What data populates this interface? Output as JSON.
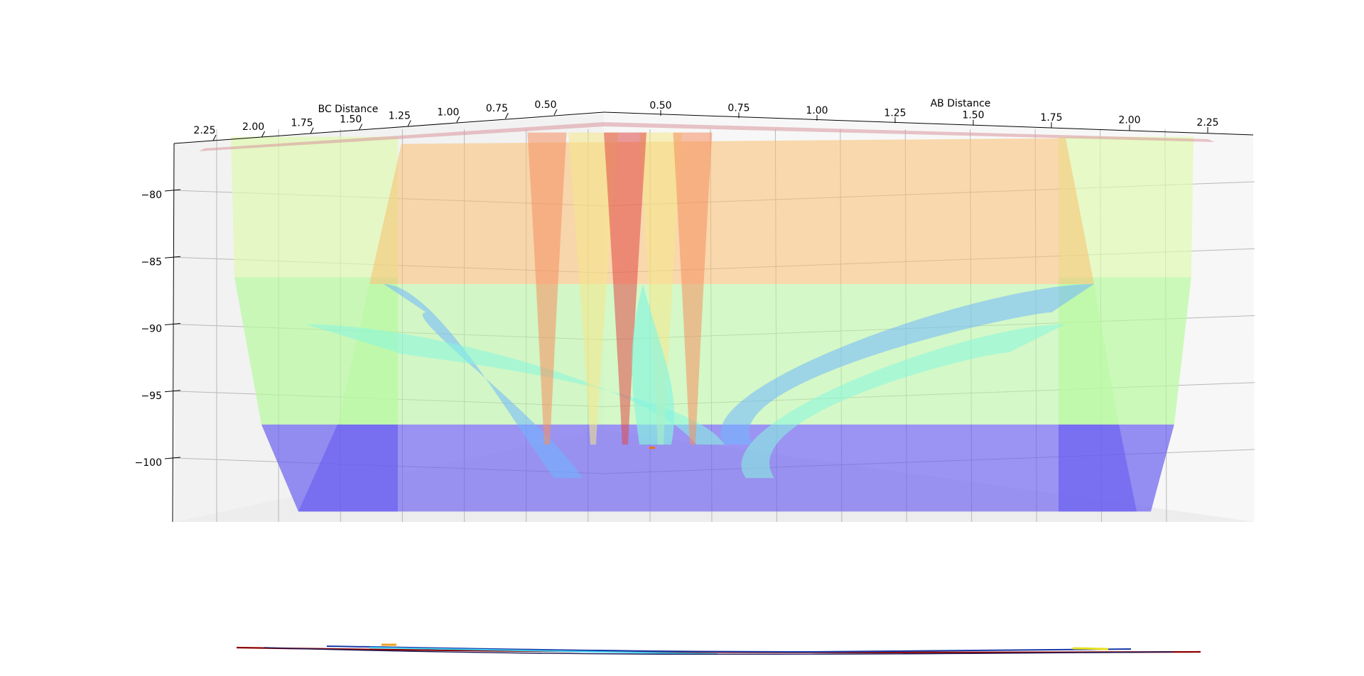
{
  "chart_data": {
    "type": "surface3d",
    "title": "",
    "xlabel": "AB Distance",
    "ylabel": "BC Distance",
    "zlabel": "",
    "x_ticks": [
      "0.50",
      "0.75",
      "1.00",
      "1.25",
      "1.50",
      "1.75",
      "2.00",
      "2.25"
    ],
    "y_ticks": [
      "0.50",
      "0.75",
      "1.00",
      "1.25",
      "1.50",
      "1.75",
      "2.00",
      "2.25"
    ],
    "z_ticks": [
      "−80",
      "−85",
      "−90",
      "−95",
      "−100"
    ],
    "z_tick_values": [
      -80,
      -85,
      -90,
      -95,
      -100
    ],
    "xlim": [
      0.5,
      2.25
    ],
    "ylim": [
      0.5,
      2.25
    ],
    "zlim": [
      -104,
      -75
    ],
    "z_top": -76,
    "valley_floor": -104,
    "saddle_z": -99,
    "colormap": "jet",
    "band_colors": [
      "#6a5ff0",
      "#6fb6ff",
      "#86f5df",
      "#b8faa0",
      "#e0fab0",
      "#f6e88a",
      "#fac070",
      "#f59060",
      "#e04848"
    ],
    "surface_alpha": 0.55,
    "grid": true,
    "projected_contour": true
  }
}
